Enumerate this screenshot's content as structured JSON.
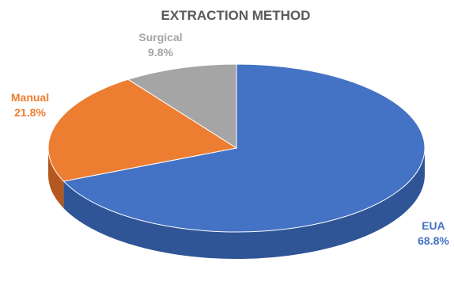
{
  "chart_data": {
    "type": "pie",
    "style": "3d",
    "title": "EXTRACTION METHOD",
    "legend": "none",
    "slices": [
      {
        "name": "EUA",
        "value": 68.8,
        "value_label": "68.8%",
        "color": "#4472C4",
        "side_color": "#2F5597"
      },
      {
        "name": "Manual",
        "value": 21.8,
        "value_label": "21.8%",
        "color": "#ED7D31",
        "side_color": "#B4581F"
      },
      {
        "name": "Surgical",
        "value": 9.8,
        "value_label": "9.8%",
        "color": "#A5A5A5",
        "side_color": "#7F7F7F"
      }
    ]
  }
}
